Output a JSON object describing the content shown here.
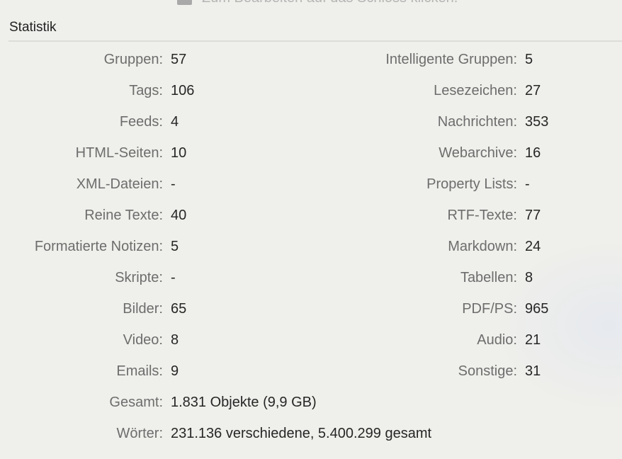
{
  "header": {
    "lock_text": "Zum Bearbeiten auf das Schloss klicken."
  },
  "section_title": "Statistik",
  "left": [
    {
      "label": "Gruppen:",
      "value": "57"
    },
    {
      "label": "Tags:",
      "value": "106"
    },
    {
      "label": "Feeds:",
      "value": "4"
    },
    {
      "label": "HTML-Seiten:",
      "value": "10"
    },
    {
      "label": "XML-Dateien:",
      "value": "-"
    },
    {
      "label": "Reine Texte:",
      "value": "40"
    },
    {
      "label": "Formatierte Notizen:",
      "value": "5"
    },
    {
      "label": "Skripte:",
      "value": "-"
    },
    {
      "label": "Bilder:",
      "value": "65"
    },
    {
      "label": "Video:",
      "value": "8"
    },
    {
      "label": "Emails:",
      "value": "9"
    },
    {
      "label": "Gesamt:",
      "value": "1.831 Objekte (9,9 GB)"
    },
    {
      "label": "Wörter:",
      "value": "231.136 verschiedene, 5.400.299 gesamt"
    }
  ],
  "right": [
    {
      "label": "Intelligente Gruppen:",
      "value": "5"
    },
    {
      "label": "Lesezeichen:",
      "value": "27"
    },
    {
      "label": "Nachrichten:",
      "value": "353"
    },
    {
      "label": "Webarchive:",
      "value": "16"
    },
    {
      "label": "Property Lists:",
      "value": "-"
    },
    {
      "label": "RTF-Texte:",
      "value": "77"
    },
    {
      "label": "Markdown:",
      "value": "24"
    },
    {
      "label": "Tabellen:",
      "value": "8"
    },
    {
      "label": "PDF/PS:",
      "value": "965"
    },
    {
      "label": "Audio:",
      "value": "21"
    },
    {
      "label": "Sonstige:",
      "value": "31"
    }
  ]
}
